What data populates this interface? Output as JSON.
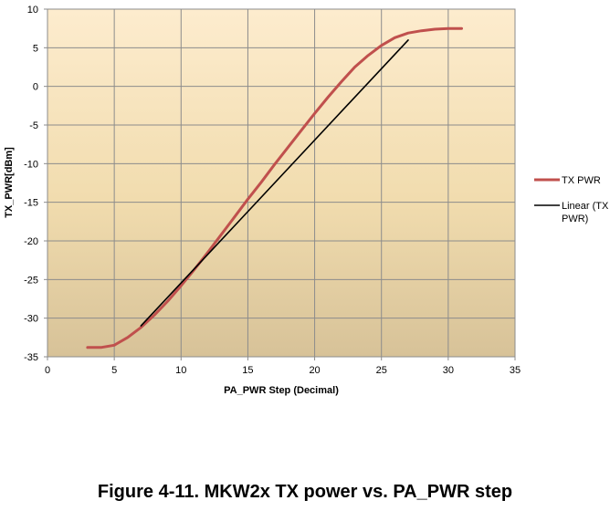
{
  "caption": "Figure 4-11. MKW2x TX power vs. PA_PWR step",
  "chart_data": {
    "type": "line",
    "xlabel": "PA_PWR Step (Decimal)",
    "ylabel": "TX_PWR[dBm]",
    "xlim": [
      0,
      35
    ],
    "ylim": [
      -35,
      10
    ],
    "x_ticks": [
      0,
      5,
      10,
      15,
      20,
      25,
      30,
      35
    ],
    "y_ticks": [
      10,
      5,
      0,
      -5,
      -10,
      -15,
      -20,
      -25,
      -30,
      -35
    ],
    "grid": true,
    "legend_position": "right",
    "background": "gradient-tan",
    "series": [
      {
        "name": "TX PWR",
        "color": "#c0504d",
        "x": [
          3,
          4,
          5,
          6,
          7,
          8,
          9,
          10,
          11,
          12,
          13,
          14,
          15,
          16,
          17,
          18,
          19,
          20,
          21,
          22,
          23,
          24,
          25,
          26,
          27,
          28,
          29,
          30,
          31
        ],
        "y": [
          -33.8,
          -33.8,
          -33.5,
          -32.5,
          -31.2,
          -29.6,
          -27.8,
          -25.8,
          -23.7,
          -21.5,
          -19.2,
          -16.9,
          -14.6,
          -12.4,
          -10.1,
          -7.9,
          -5.7,
          -3.5,
          -1.4,
          0.6,
          2.5,
          4.0,
          5.3,
          6.3,
          6.9,
          7.2,
          7.4,
          7.5,
          7.5
        ]
      },
      {
        "name": "Linear (TX PWR)",
        "color": "#000000",
        "x": [
          7,
          27
        ],
        "y": [
          -31.0,
          6.0
        ]
      }
    ]
  }
}
